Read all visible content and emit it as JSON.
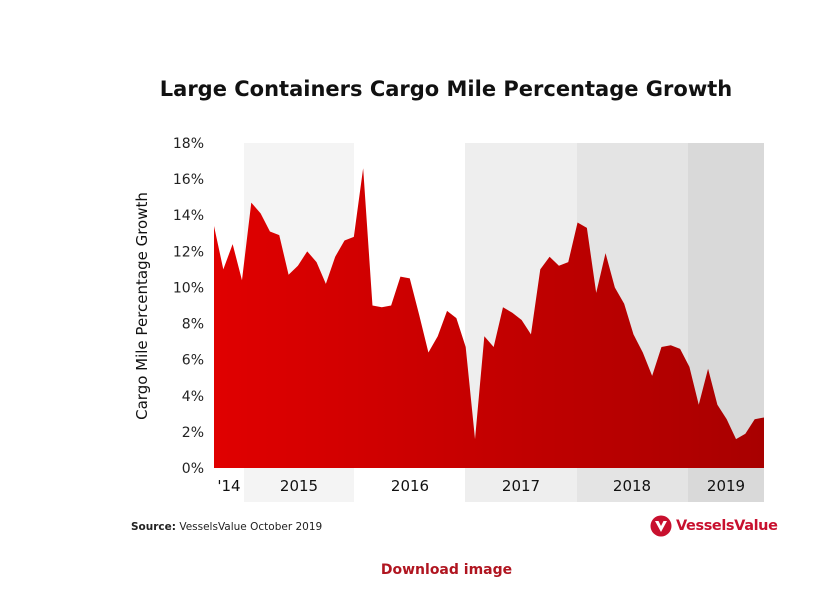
{
  "chart_data": {
    "type": "area",
    "title": "Large Containers Cargo Mile Percentage Growth",
    "ylabel": "Cargo Mile Percentage Growth",
    "xlabel": "",
    "ylim": [
      0,
      18
    ],
    "y_ticks": [
      "0%",
      "2%",
      "4%",
      "6%",
      "8%",
      "10%",
      "12%",
      "14%",
      "16%",
      "18%"
    ],
    "x_tick_labels": [
      "'14",
      "2015",
      "2016",
      "2017",
      "2018",
      "2019"
    ],
    "grid": false,
    "series": [
      {
        "color": "#cc0000",
        "values": [
          13.4,
          11.0,
          12.4,
          10.4,
          14.7,
          14.1,
          13.1,
          12.9,
          10.7,
          11.2,
          12.0,
          11.4,
          10.2,
          11.7,
          12.6,
          12.8,
          16.6,
          9.0,
          8.9,
          9.0,
          10.6,
          10.5,
          8.5,
          6.4,
          7.3,
          8.7,
          8.3,
          6.7,
          1.6,
          7.3,
          6.7,
          8.9,
          8.6,
          8.2,
          7.4,
          11.0,
          11.7,
          11.2,
          11.4,
          13.6,
          13.3,
          9.7,
          11.9,
          10.0,
          9.1,
          7.4,
          6.4,
          5.1,
          6.7,
          6.8,
          6.6,
          5.6,
          3.5,
          5.5,
          3.5,
          2.7,
          1.6,
          1.9,
          2.7,
          2.8
        ]
      }
    ],
    "year_bands": [
      {
        "label": "'14",
        "shade": "#ffffff"
      },
      {
        "label": "2015",
        "shade": "#f4f4f4"
      },
      {
        "label": "2016",
        "shade": "#ffffff"
      },
      {
        "label": "2017",
        "shade": "#eeeeee"
      },
      {
        "label": "2018",
        "shade": "#e4e4e4"
      },
      {
        "label": "2019",
        "shade": "#d9d9d9"
      }
    ]
  },
  "source": {
    "label": "Source:",
    "text": " VesselsValue October 2019"
  },
  "logo": {
    "text": "VesselsValue",
    "icon": "vesselsvalue-logo-icon",
    "color": "#c8102e"
  },
  "download_link": {
    "label": "Download image",
    "color": "#b01520"
  }
}
